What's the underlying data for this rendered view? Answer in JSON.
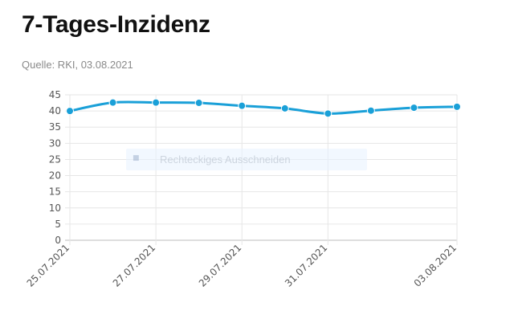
{
  "page": {
    "title": "7-Tages-Inzidenz",
    "subtitle": "Quelle: RKI, 03.08.2021"
  },
  "overlay": {
    "icon": "scissors-icon",
    "label": "Rechteckiges Ausschneiden"
  },
  "colors": {
    "line": "#1aa0d8",
    "grid": "#e6e6e6",
    "axis": "#bdbdbd"
  },
  "chart_data": {
    "type": "line",
    "title": "",
    "xlabel": "",
    "ylabel": "",
    "ylim": [
      0,
      45
    ],
    "yticks": [
      0,
      5,
      10,
      15,
      20,
      25,
      30,
      35,
      40,
      45
    ],
    "x": [
      "25.07.2021",
      "26.07.2021",
      "27.07.2021",
      "28.07.2021",
      "29.07.2021",
      "30.07.2021",
      "31.07.2021",
      "01.08.2021",
      "02.08.2021",
      "03.08.2021"
    ],
    "xtick_labels": [
      "25.07.2021",
      "27.07.2021",
      "29.07.2021",
      "31.07.2021",
      "03.08.2021"
    ],
    "series": [
      {
        "values": [
          40.0,
          42.6,
          42.6,
          42.5,
          41.6,
          40.8,
          39.2,
          40.1,
          41.0,
          41.3
        ]
      }
    ],
    "grid": true,
    "legend": "none"
  }
}
